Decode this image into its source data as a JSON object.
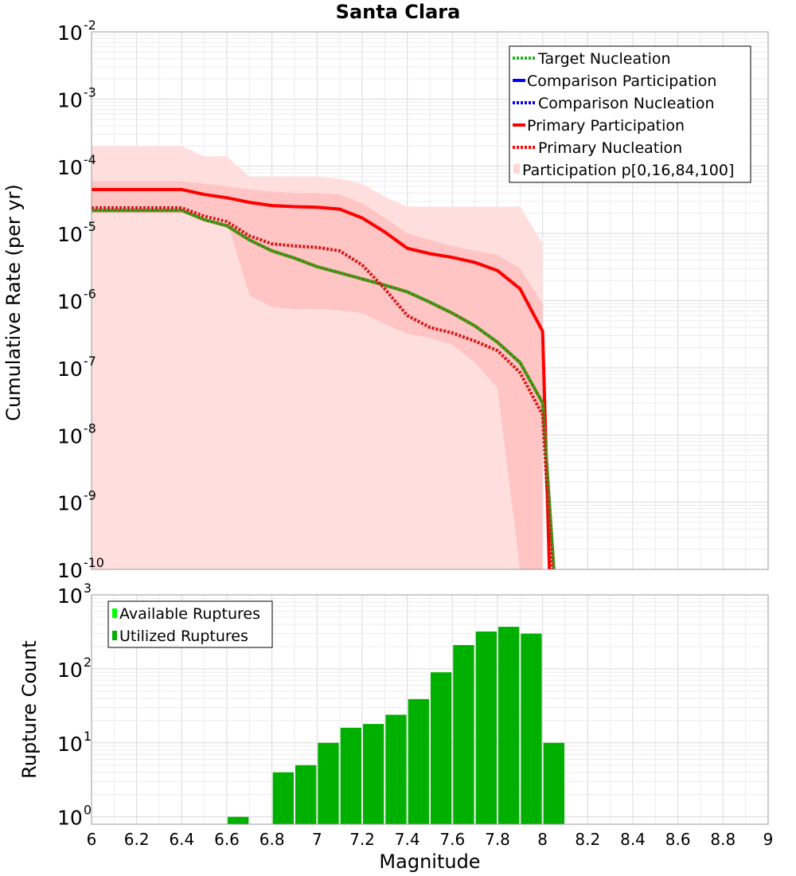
{
  "chart_data": [
    {
      "type": "line",
      "title": "Santa Clara",
      "xlabel": "Magnitude",
      "ylabel": "Cumulative Rate (per yr)",
      "xlim": [
        6,
        9
      ],
      "ylim_log10": [
        -10,
        -2
      ],
      "ytick_exponents": [
        "-10",
        "-9",
        "-8",
        "-7",
        "-6",
        "-5",
        "-4",
        "-3",
        "-2"
      ],
      "colors": {
        "target": "#2a9d1a",
        "primary": "#ff0000",
        "comparison": "#0000ff",
        "band_outer": "#ffdede",
        "band_inner": "#ffc4c4",
        "olive": "#7a6a10"
      },
      "legend": {
        "position": "top-right",
        "entries": [
          "Target Nucleation",
          "Comparison Participation",
          "Comparison Nucleation",
          "Primary Participation",
          "Primary Nucleation",
          "Participation p[0,16,84,100]"
        ]
      },
      "series": [
        {
          "name": "Target Nucleation",
          "style": "dotted",
          "x": [
            6.0,
            6.4,
            6.5,
            6.6,
            6.7,
            6.8,
            6.9,
            7.0,
            7.1,
            7.2,
            7.3,
            7.4,
            7.5,
            7.6,
            7.7,
            7.8,
            7.9,
            8.0,
            8.05
          ],
          "y": [
            2.2e-05,
            2.2e-05,
            1.6e-05,
            1.3e-05,
            8e-06,
            5.5e-06,
            4.3e-06,
            3.2e-06,
            2.6e-06,
            2.1e-06,
            1.7e-06,
            1.35e-06,
            9.5e-07,
            6.5e-07,
            4.2e-07,
            2.4e-07,
            1.2e-07,
            3e-08,
            1e-10
          ]
        },
        {
          "name": "Primary Participation",
          "style": "solid",
          "x": [
            6.0,
            6.4,
            6.5,
            6.6,
            6.7,
            6.8,
            6.9,
            7.0,
            7.1,
            7.2,
            7.3,
            7.4,
            7.5,
            7.6,
            7.7,
            7.8,
            7.9,
            8.0,
            8.03
          ],
          "y": [
            4.5e-05,
            4.5e-05,
            3.8e-05,
            3.4e-05,
            2.9e-05,
            2.6e-05,
            2.5e-05,
            2.45e-05,
            2.3e-05,
            1.7e-05,
            1.05e-05,
            6e-06,
            5e-06,
            4.4e-06,
            3.7e-06,
            2.8e-06,
            1.5e-06,
            3.5e-07,
            1e-10
          ]
        },
        {
          "name": "Primary Nucleation",
          "style": "dotted",
          "x": [
            6.0,
            6.4,
            6.5,
            6.6,
            6.7,
            6.8,
            6.9,
            7.0,
            7.1,
            7.2,
            7.3,
            7.4,
            7.5,
            7.6,
            7.7,
            7.8,
            7.9,
            8.0,
            8.04
          ],
          "y": [
            2.4e-05,
            2.4e-05,
            1.8e-05,
            1.5e-05,
            9.2e-06,
            7e-06,
            6.5e-06,
            6.2e-06,
            5.5e-06,
            3.4e-06,
            1.5e-06,
            6e-07,
            4e-07,
            3.3e-07,
            2.5e-07,
            1.8e-07,
            8.5e-08,
            2e-08,
            1e-10
          ]
        }
      ],
      "band_outer": {
        "x": [
          6.0,
          6.4,
          6.5,
          6.6,
          6.7,
          6.8,
          6.9,
          7.0,
          7.1,
          7.2,
          7.3,
          7.4,
          7.5,
          7.6,
          7.7,
          7.8,
          7.9,
          8.0
        ],
        "upper": [
          0.0002,
          0.0002,
          0.00014,
          0.00014,
          7e-05,
          7e-05,
          7e-05,
          7e-05,
          6.5e-05,
          5.5e-05,
          3.5e-05,
          2.5e-05,
          2.5e-05,
          2.5e-05,
          2.5e-05,
          2.5e-05,
          2.5e-05,
          7e-06
        ],
        "lower": [
          1e-10,
          1e-10,
          1e-10,
          1e-10,
          1e-10,
          1e-10,
          1e-10,
          1e-10,
          1e-10,
          1e-10,
          1e-10,
          1e-10,
          1e-10,
          1e-10,
          1e-10,
          1e-10,
          1e-10,
          1e-10
        ]
      },
      "band_inner": {
        "x": [
          6.0,
          6.4,
          6.5,
          6.6,
          6.7,
          6.8,
          6.9,
          7.0,
          7.1,
          7.2,
          7.3,
          7.4,
          7.5,
          7.6,
          7.7,
          7.8,
          7.9,
          8.0
        ],
        "upper": [
          6e-05,
          6e-05,
          5.5e-05,
          5e-05,
          4.5e-05,
          4.2e-05,
          4e-05,
          4e-05,
          3.8e-05,
          2.8e-05,
          1.7e-05,
          1e-05,
          8e-06,
          6.5e-06,
          5.5e-06,
          4.8e-06,
          3e-06,
          9e-07
        ],
        "lower": [
          2e-05,
          2e-05,
          1.8e-05,
          1.6e-05,
          1.2e-06,
          8e-07,
          7.5e-07,
          7.5e-07,
          7.2e-07,
          6.5e-07,
          4.5e-07,
          3.2e-07,
          2.8e-07,
          2.2e-07,
          1.2e-07,
          5e-08,
          1e-10,
          1e-10
        ]
      }
    },
    {
      "type": "bar",
      "xlabel": "Magnitude",
      "ylabel": "Rupture Count",
      "xlim": [
        6,
        9
      ],
      "ylim_log10": [
        -0.1,
        3
      ],
      "ytick_exponents": [
        "0",
        "1",
        "2",
        "3"
      ],
      "xticks": [
        "6",
        "6.2",
        "6.4",
        "6.6",
        "6.8",
        "7",
        "7.2",
        "7.4",
        "7.6",
        "7.8",
        "8",
        "8.2",
        "8.4",
        "8.6",
        "8.8",
        "9"
      ],
      "legend": {
        "position": "top-left",
        "entries": [
          "Available Ruptures",
          "Utilized Ruptures"
        ]
      },
      "colors": {
        "available": "#00ff00",
        "utilized": "#00b000"
      },
      "series": [
        {
          "name": "Utilized Ruptures",
          "bins_center": [
            6.65,
            6.85,
            6.95,
            7.05,
            7.15,
            7.25,
            7.35,
            7.45,
            7.55,
            7.65,
            7.75,
            7.85,
            7.95,
            8.05
          ],
          "counts": [
            1,
            4,
            5,
            10,
            16,
            18,
            24,
            39,
            90,
            210,
            320,
            370,
            300,
            10
          ]
        }
      ]
    }
  ]
}
